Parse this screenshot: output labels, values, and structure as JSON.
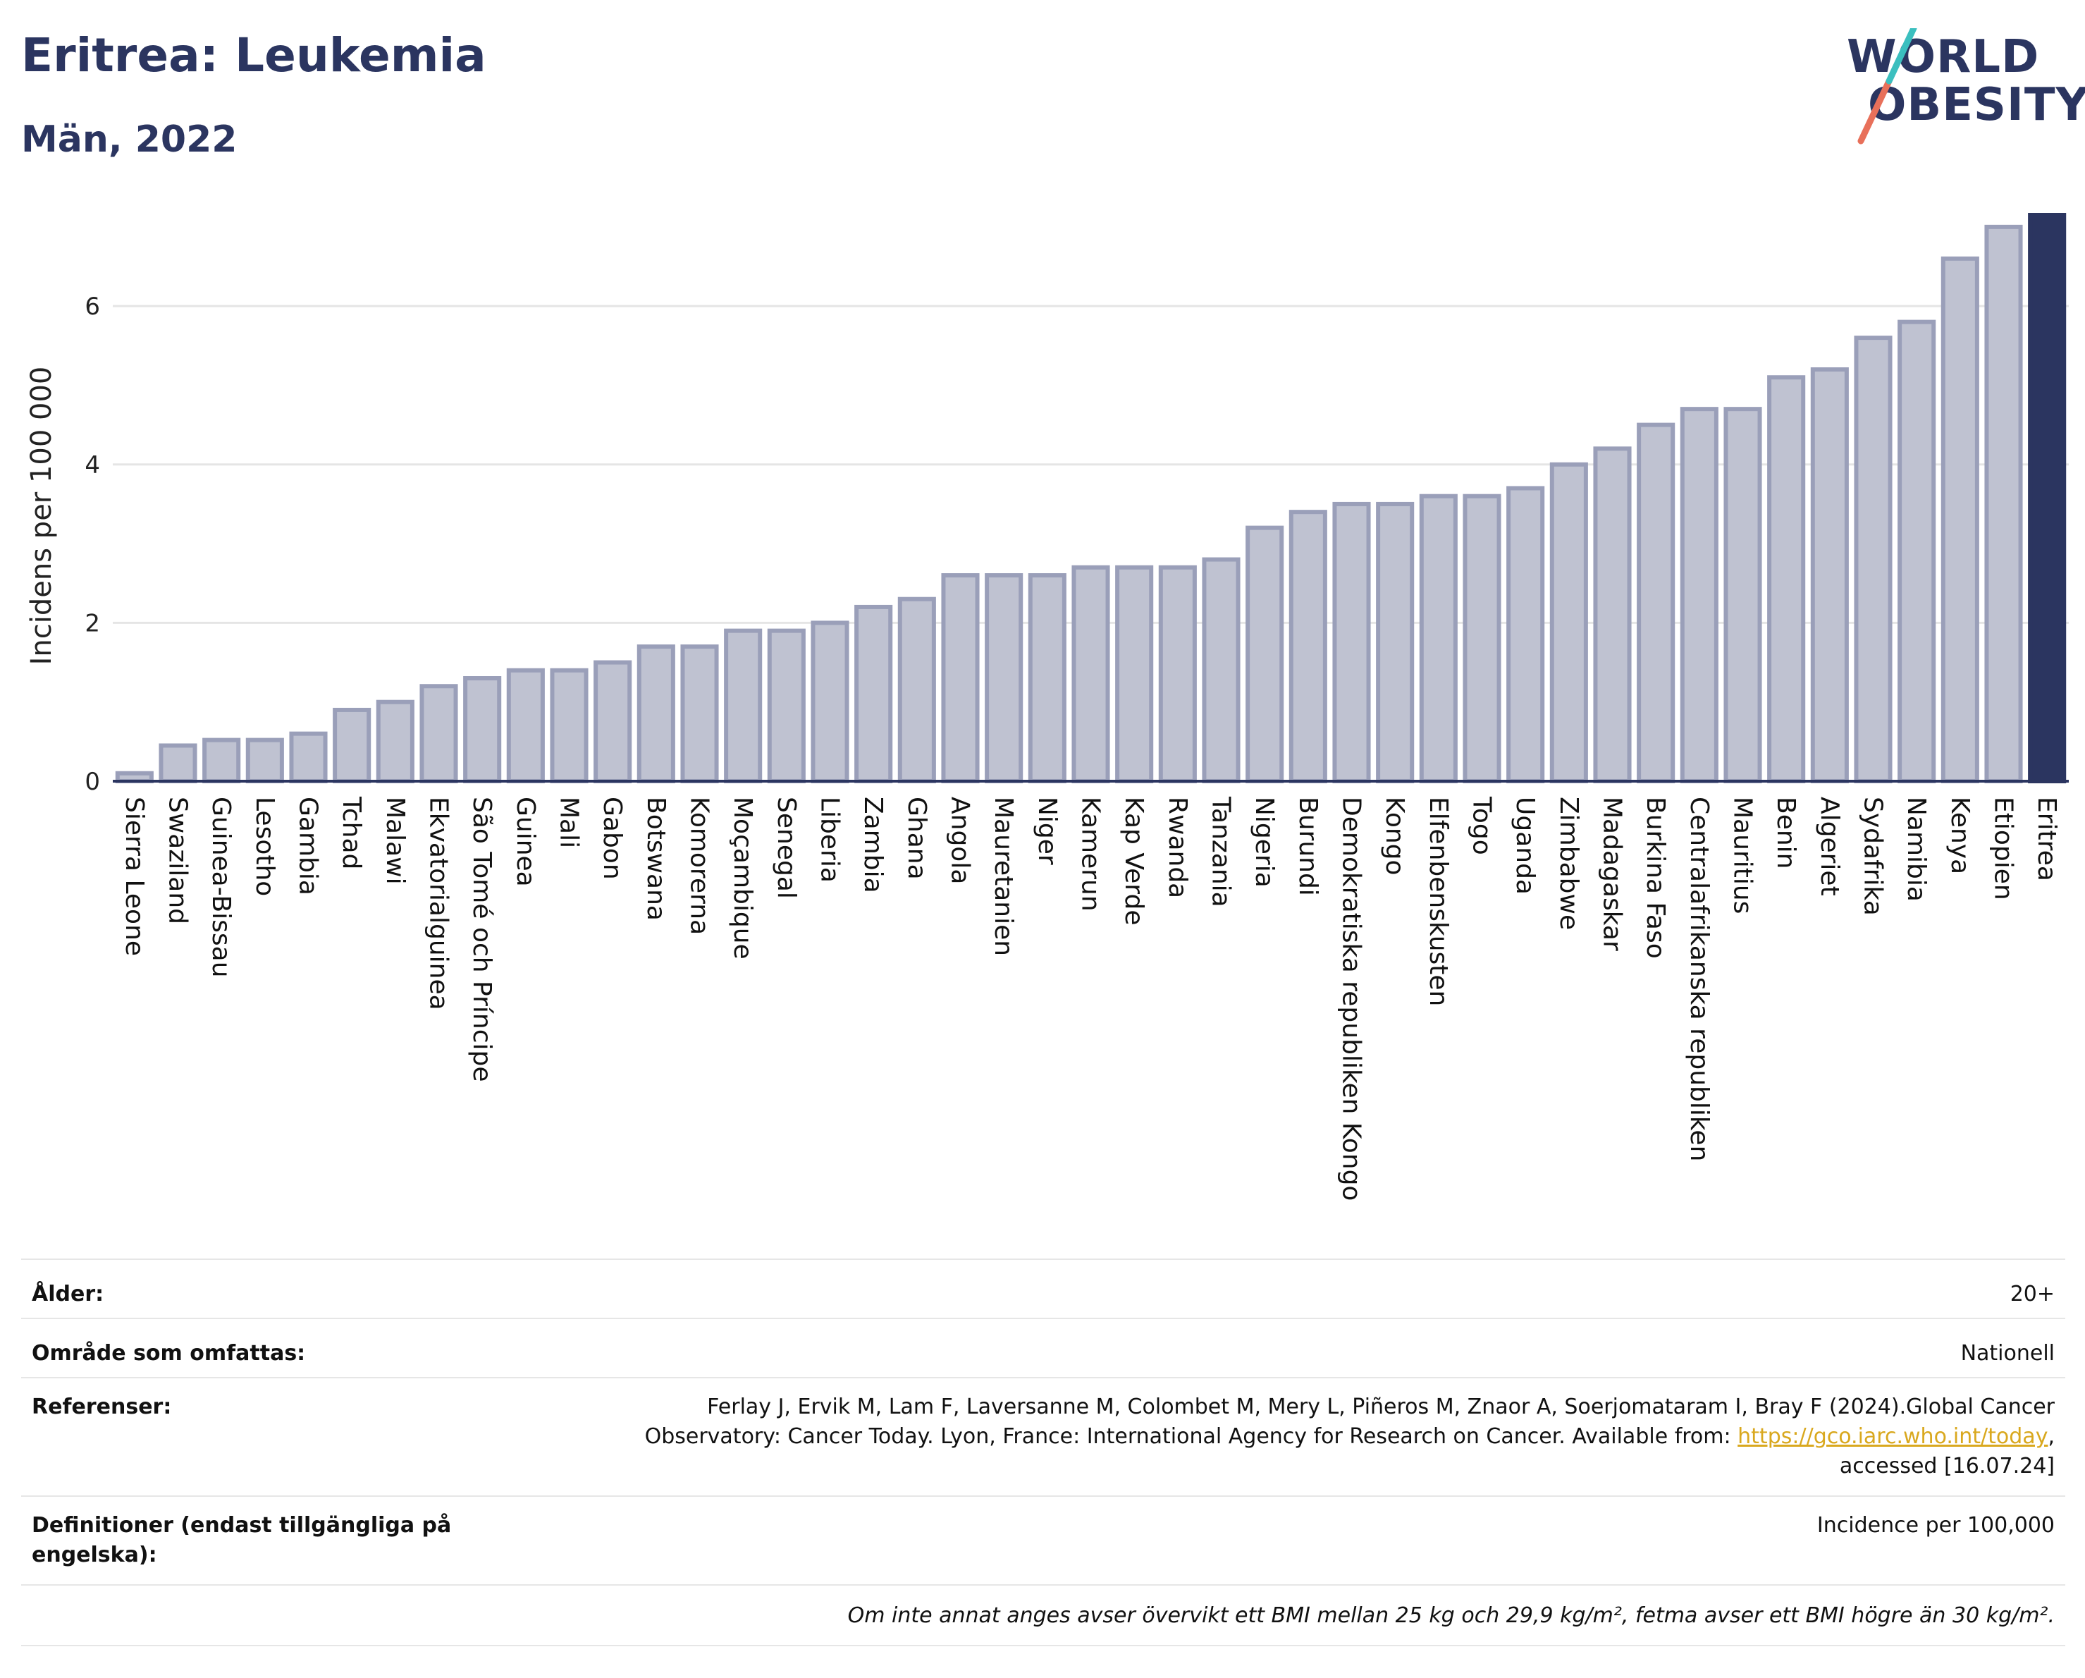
{
  "header": {
    "title": "Eritrea: Leukemia",
    "subtitle": "Män, 2022",
    "logo_line1": "WORLD",
    "logo_line2": "OBESITY"
  },
  "colors": {
    "bar_fill": "#bfc2d1",
    "bar_stroke": "#9a9fb9",
    "highlight": "#2b3560",
    "grid": "#e5e5e5",
    "logo_teal": "#3bbfbf",
    "logo_coral": "#e8705a",
    "link": "#d9a81e"
  },
  "chart_data": {
    "type": "bar",
    "ylabel": "Incidens per 100 000",
    "ylim": [
      0,
      7.15
    ],
    "yticks": [
      0,
      2,
      4,
      6
    ],
    "grid": true,
    "highlight": "Eritrea",
    "categories": [
      "Sierra Leone",
      "Swaziland",
      "Guinea-Bissau",
      "Lesotho",
      "Gambia",
      "Tchad",
      "Malawi",
      "Ekvatorialguinea",
      "São Tomé och Príncipe",
      "Guinea",
      "Mali",
      "Gabon",
      "Botswana",
      "Komorerna",
      "Moçambique",
      "Senegal",
      "Liberia",
      "Zambia",
      "Ghana",
      "Angola",
      "Mauretanien",
      "Niger",
      "Kamerun",
      "Kap Verde",
      "Rwanda",
      "Tanzania",
      "Nigeria",
      "Burundi",
      "Demokratiska republiken Kongo",
      "Kongo",
      "Elfenbenskusten",
      "Togo",
      "Uganda",
      "Zimbabwe",
      "Madagaskar",
      "Burkina Faso",
      "Centralafrikanska republiken",
      "Mauritius",
      "Benin",
      "Algeriet",
      "Sydafrika",
      "Namibia",
      "Kenya",
      "Etiopien",
      "Eritrea"
    ],
    "values": [
      0.1,
      0.45,
      0.52,
      0.52,
      0.6,
      0.9,
      1.0,
      1.2,
      1.3,
      1.4,
      1.4,
      1.5,
      1.7,
      1.7,
      1.9,
      1.9,
      2.0,
      2.2,
      2.3,
      2.6,
      2.6,
      2.6,
      2.7,
      2.7,
      2.7,
      2.8,
      3.2,
      3.4,
      3.5,
      3.5,
      3.6,
      3.6,
      3.7,
      4.0,
      4.2,
      4.5,
      4.7,
      4.7,
      5.1,
      5.2,
      5.6,
      5.8,
      6.6,
      7.0,
      7.15
    ]
  },
  "meta": {
    "age_label": "Ålder:",
    "age_value": "20+",
    "area_label": "Område som omfattas:",
    "area_value": "Nationell",
    "ref_label": "Referenser:",
    "ref_line1": "Ferlay J, Ervik M, Lam F, Laversanne M, Colombet M, Mery L, Piñeros M, Znaor A, Soerjomataram I, Bray F (2024).Global Cancer",
    "ref_line2_pre": "Observatory: Cancer Today. Lyon, France: International Agency for Research on Cancer. Available from: ",
    "ref_link": "https://gco.iarc.who.int/today",
    "ref_line2_post": ",",
    "ref_line3": "accessed [16.07.24]",
    "def_label": "Definitioner (endast tillgängliga på engelska):",
    "def_value": "Incidence per 100,000",
    "note": "Om inte annat anges avser övervikt ett BMI mellan 25 kg och 29,9 kg/m², fetma avser ett BMI högre än 30 kg/m²."
  }
}
